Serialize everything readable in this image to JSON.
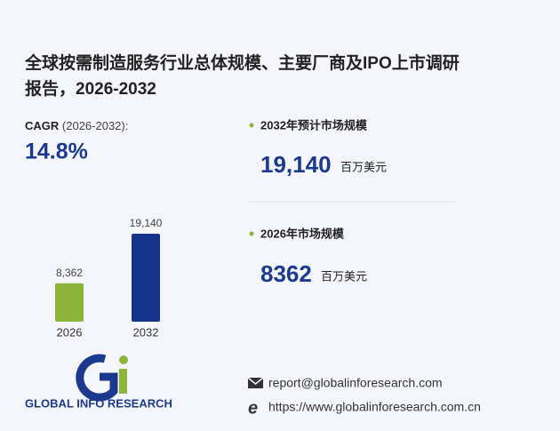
{
  "title_lines": [
    "全球按需制造服务行业总体规模、主要厂商及IPO上市调研",
    "报告，2026-2032"
  ],
  "cagr": {
    "label": "CAGR",
    "period": "(2026-2032):",
    "value": "14.8%"
  },
  "stats": [
    {
      "label": "2032年预计市场规模",
      "value": "19,140",
      "unit": "百万美元"
    },
    {
      "label": "2026年市场规模",
      "value": "8362",
      "unit": "百万美元"
    }
  ],
  "logo_text": "GLOBAL INFO RESEARCH",
  "contacts": {
    "email": "report@globalinforesearch.com",
    "website": "https://www.globalinforesearch.com.cn"
  },
  "chart_data": {
    "type": "bar",
    "categories": [
      "2026",
      "2032"
    ],
    "values": [
      8362,
      19140
    ],
    "value_labels": [
      "8,362",
      "19,140"
    ],
    "colors": [
      "#8db53b",
      "#17348c"
    ]
  }
}
